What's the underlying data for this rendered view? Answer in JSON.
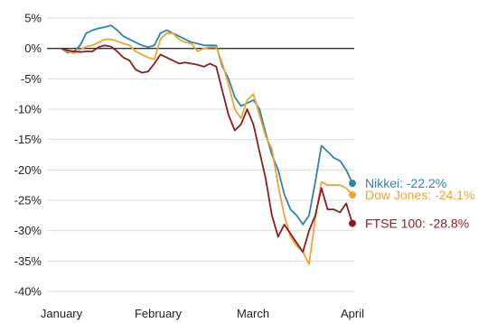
{
  "chart_data": {
    "type": "line",
    "title": "",
    "xlabel": "",
    "ylabel": "",
    "x_ticks": [
      "January",
      "February",
      "March",
      "April"
    ],
    "y_ticks": [
      "5%",
      "0%",
      "-5%",
      "-10%",
      "-15%",
      "-20%",
      "-25%",
      "-30%",
      "-35%",
      "-40%"
    ],
    "ylim": [
      -40,
      5
    ],
    "grid": true,
    "legend": "end-of-line labels",
    "series": [
      {
        "name": "Nikkei",
        "end_label": "Nikkei: -22.2%",
        "color": "#2a86a8",
        "values": [
          0,
          -0.7,
          -0.5,
          0.5,
          2.5,
          3.0,
          3.3,
          3.5,
          3.8,
          3.0,
          2.0,
          1.5,
          1.0,
          0.5,
          0.2,
          0.5,
          2.5,
          3.0,
          2.5,
          2.0,
          1.5,
          1.0,
          0.8,
          0.5,
          0.5,
          0.5,
          -3,
          -5,
          -8,
          -9.5,
          -9.0,
          -8.5,
          -10,
          -14,
          -17.5,
          -20,
          -24,
          -26.5,
          -27.5,
          -29,
          -27.5,
          -22,
          -16,
          -17,
          -18,
          -18.5,
          -20,
          -22.2
        ]
      },
      {
        "name": "Dow Jones",
        "end_label": "Dow Jones: -24.1%",
        "color": "#e9a636",
        "values": [
          0,
          -0.5,
          -0.8,
          -0.2,
          0.3,
          0.5,
          1.0,
          1.5,
          1.5,
          1.2,
          0.8,
          0.5,
          -0.5,
          -1.0,
          -1.5,
          -1.8,
          1.5,
          2.5,
          2.5,
          1.5,
          1.0,
          0.8,
          -0.5,
          0,
          0.2,
          0.2,
          -2.5,
          -6,
          -10,
          -11.5,
          -8.5,
          -7.5,
          -11,
          -14.5,
          -16.5,
          -22.5,
          -27.5,
          -31,
          -32.5,
          -33.5,
          -35.5,
          -28,
          -22,
          -22.5,
          -22.5,
          -22.5,
          -23,
          -24.1
        ]
      },
      {
        "name": "FTSE 100",
        "end_label": "FTSE 100: -28.8%",
        "color": "#8b1d1d",
        "values": [
          0,
          -0.3,
          -0.5,
          -0.6,
          -0.5,
          -0.5,
          0.2,
          0.5,
          0.3,
          -0.5,
          -1.5,
          -2.0,
          -3.5,
          -4.0,
          -3.8,
          -2.5,
          -1.0,
          -1.5,
          -2.0,
          -2.5,
          -2.3,
          -2.5,
          -2.7,
          -3.0,
          -2.5,
          -3.0,
          -7,
          -11,
          -13.5,
          -12.5,
          -10.0,
          -12.5,
          -17,
          -21.5,
          -27.5,
          -31,
          -29,
          -30.5,
          -32,
          -33.5,
          -30,
          -27.5,
          -23,
          -26.5,
          -26.5,
          -27.0,
          -25.5,
          -28.8
        ]
      }
    ]
  }
}
